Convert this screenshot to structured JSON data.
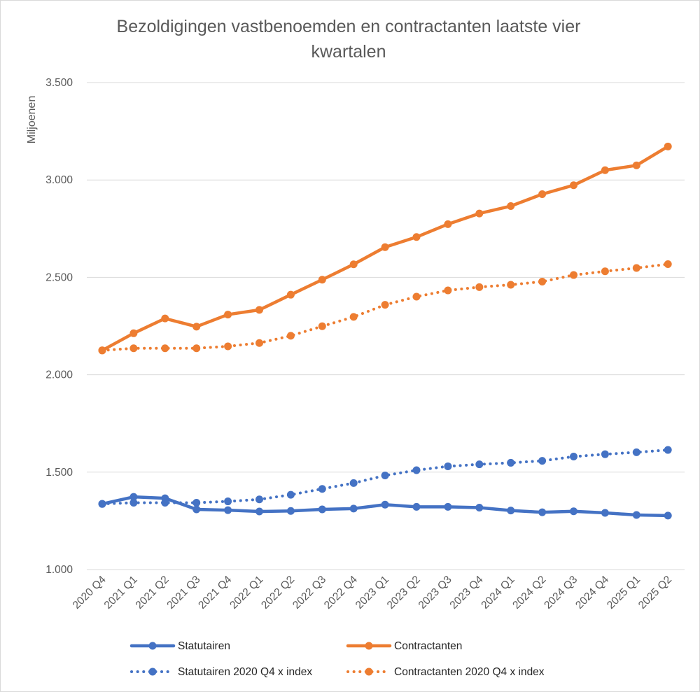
{
  "chart_data": {
    "type": "line",
    "title_line1": "Bezoldigingen vastbenoemden en contractanten laatste vier",
    "title_line2": "kwartalen",
    "ylabel": "Miljoenen",
    "xlabel": "",
    "ylim": [
      1000,
      3500
    ],
    "yticks": [
      1000,
      1500,
      2000,
      2500,
      3000,
      3500
    ],
    "ytick_labels": [
      "1.000",
      "1.500",
      "2.000",
      "2.500",
      "3.000",
      "3.500"
    ],
    "grid": true,
    "legend_position": "bottom",
    "categories": [
      "2020 Q4",
      "2021 Q1",
      "2021 Q2",
      "2021 Q3",
      "2021 Q4",
      "2022 Q1",
      "2022 Q2",
      "2022 Q3",
      "2022 Q4",
      "2023 Q1",
      "2023 Q2",
      "2023 Q3",
      "2023 Q4",
      "2024 Q1",
      "2024 Q2",
      "2024 Q3",
      "2024 Q4",
      "2025 Q1",
      "2025 Q2"
    ],
    "series": [
      {
        "name": "Statutairen",
        "color": "#4472C4",
        "style": "solid",
        "values": [
          1337,
          1373,
          1366,
          1309,
          1305,
          1298,
          1301,
          1309,
          1313,
          1333,
          1322,
          1322,
          1318,
          1303,
          1294,
          1299,
          1291,
          1280,
          1277
        ]
      },
      {
        "name": "Contractanten",
        "color": "#ED7D31",
        "style": "solid",
        "values": [
          2125,
          2213,
          2289,
          2247,
          2309,
          2333,
          2411,
          2488,
          2567,
          2655,
          2707,
          2773,
          2828,
          2866,
          2927,
          2973,
          3050,
          3075,
          3172
        ]
      },
      {
        "name": "Statutairen 2020 Q4 x index",
        "color": "#4472C4",
        "style": "dotted",
        "values": [
          1337,
          1343,
          1343,
          1343,
          1350,
          1360,
          1384,
          1414,
          1444,
          1483,
          1510,
          1530,
          1540,
          1548,
          1558,
          1580,
          1592,
          1602,
          1614
        ]
      },
      {
        "name": "Contractanten 2020 Q4 x index",
        "color": "#ED7D31",
        "style": "dotted",
        "values": [
          2125,
          2136,
          2136,
          2136,
          2146,
          2163,
          2200,
          2249,
          2297,
          2359,
          2401,
          2433,
          2450,
          2462,
          2478,
          2512,
          2531,
          2548,
          2568
        ]
      }
    ]
  }
}
